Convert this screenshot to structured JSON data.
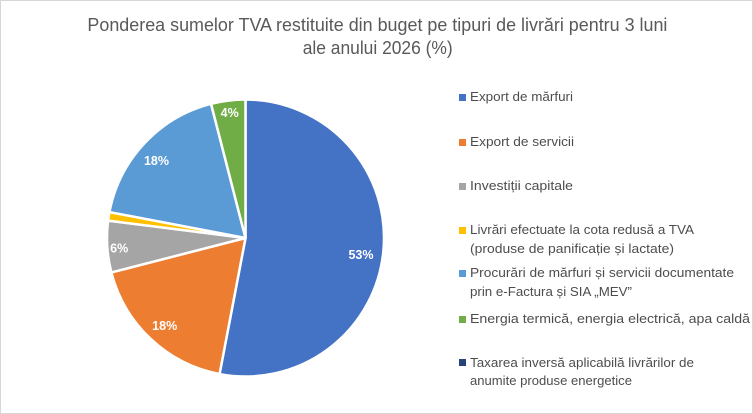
{
  "chart_data": {
    "type": "pie",
    "title": "Ponderea sumelor TVA restituite din buget pe tipuri de livrări pentru 3 luni ale anului 2026 (%)",
    "title_lines": [
      "Ponderea sumelor TVA restituite din buget pe tipuri de livrări pentru 3 luni",
      "ale anului 2026 (%)"
    ],
    "unit": "%",
    "legend_position": "right",
    "slices": [
      {
        "category": "Export de mărfuri",
        "value": 53,
        "data_label": "53%",
        "color": "#4472C4",
        "legend_lines": [
          "Export de mărfuri"
        ]
      },
      {
        "category": "Export de servicii",
        "value": 18,
        "data_label": "18%",
        "color": "#ED7D31",
        "legend_lines": [
          "Export de servicii"
        ]
      },
      {
        "category": "Investiții capitale",
        "value": 6,
        "data_label": "6%",
        "color": "#A5A5A5",
        "legend_lines": [
          "Investiții capitale"
        ]
      },
      {
        "category": "Livrări efectuate la cota redusă a TVA (produse de panificație și lactate)",
        "value": 1,
        "data_label": "",
        "color": "#FFC000",
        "legend_lines": [
          "Livrări efectuate la cota redusă a TVA",
          "(produse de panificație și lactate)"
        ]
      },
      {
        "category": "Procurări de mărfuri și servicii documentate prin e-Factura și SIA „MEV”",
        "value": 18,
        "data_label": "18%",
        "color": "#5B9BD5",
        "legend_lines": [
          "Procurări de mărfuri și servicii documentate",
          "prin e-Factura și SIA „MEV”"
        ]
      },
      {
        "category": "Energia termică, energia electrică, apa caldă",
        "value": 4,
        "data_label": "4%",
        "color": "#70AD47",
        "legend_lines": [
          "Energia termică, energia electrică, apa caldă"
        ]
      },
      {
        "category": "Taxarea inversă aplicabilă livrărilor de anumite produse energetice",
        "value": 0,
        "data_label": "",
        "color": "#264478",
        "legend_lines": [
          "Taxarea inversă aplicabilă livrărilor de",
          "anumite produse energetice"
        ]
      }
    ],
    "colors": {
      "title_text": "#595959",
      "legend_text": "#4d4d4d",
      "data_label_text": "#ffffff",
      "slice_border": "#ffffff",
      "chart_border": "#d7d7d7",
      "background": "#ffffff"
    }
  }
}
